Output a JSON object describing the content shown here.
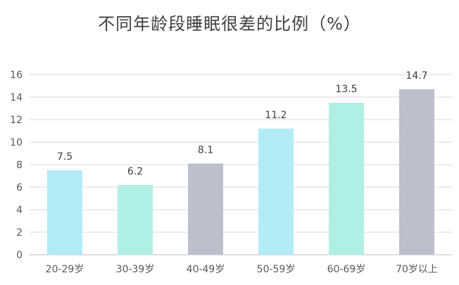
{
  "chart_data": {
    "type": "bar",
    "title": "不同年龄段睡眠很差的比例（%）",
    "xlabel": "",
    "ylabel": "",
    "categories": [
      "20-29岁",
      "30-39岁",
      "40-49岁",
      "50-59岁",
      "60-69岁",
      "70岁以上"
    ],
    "values": [
      7.5,
      6.2,
      8.1,
      11.2,
      13.5,
      14.7
    ],
    "value_labels": [
      "7.5",
      "6.2",
      "8.1",
      "11.2",
      "13.5",
      "14.7"
    ],
    "bar_colors": [
      "#b3ebf7",
      "#b0efe6",
      "#bcbfcc",
      "#b3ebf7",
      "#b0efe6",
      "#bcbfcc"
    ],
    "ylim": [
      0,
      16
    ],
    "yticks": [
      0,
      2,
      4,
      6,
      8,
      10,
      12,
      14,
      16
    ],
    "ytick_labels": [
      "0",
      "2",
      "4",
      "6",
      "8",
      "10",
      "12",
      "14",
      "16"
    ],
    "grid": true,
    "legend": "none"
  },
  "colors": {
    "title": "#404040",
    "axis_text": "#595959",
    "value_label": "#404040",
    "gridline": "#d9d9d9",
    "axis_line": "#bfbfbf"
  }
}
